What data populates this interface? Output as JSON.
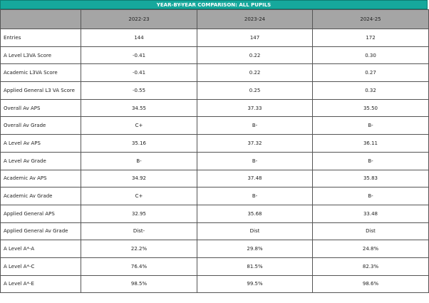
{
  "title": "YEAR-BY-YEAR COMPARISON: ALL PUPILS",
  "columns": [
    "",
    "2022-23",
    "2023-24",
    "2024-25"
  ],
  "rows": [
    {
      "label": "Entries",
      "values": [
        "144",
        "147",
        "172"
      ]
    },
    {
      "label": "A Level L3VA Score",
      "values": [
        "-0.41",
        "0.22",
        "0.30"
      ]
    },
    {
      "label": "Academic L3VA Score",
      "values": [
        "-0.41",
        "0.22",
        "0.27"
      ]
    },
    {
      "label": "Applied General L3 VA Score",
      "values": [
        "-0.55",
        "0.25",
        "0.32"
      ]
    },
    {
      "label": "Overall Av APS",
      "values": [
        "34.55",
        "37.33",
        "35.50"
      ]
    },
    {
      "label": "Overall Av Grade",
      "values": [
        "C+",
        "B-",
        "B-"
      ]
    },
    {
      "label": "A Level Av APS",
      "values": [
        "35.16",
        "37.32",
        "36.11"
      ]
    },
    {
      "label": "A Level Av Grade",
      "values": [
        "B-",
        "B-",
        "B-"
      ]
    },
    {
      "label": "Academic Av APS",
      "values": [
        "34.92",
        "37.48",
        "35.83"
      ]
    },
    {
      "label": "Academic Av Grade",
      "values": [
        "C+",
        "B-",
        "B-"
      ]
    },
    {
      "label": "Applied General APS",
      "values": [
        "32.95",
        "35.68",
        "33.48"
      ]
    },
    {
      "label": "Applied General Av Grade",
      "values": [
        "Dist-",
        "Dist",
        "Dist"
      ]
    },
    {
      "label": "A Level A*-A",
      "values": [
        "22.2%",
        "29.8%",
        "24.8%"
      ]
    },
    {
      "label": "A Level A*-C",
      "values": [
        "76.4%",
        "81.5%",
        "82.3%"
      ]
    },
    {
      "label": "A Level A*-E",
      "values": [
        "98.5%",
        "99.5%",
        "98.6%"
      ]
    }
  ]
}
